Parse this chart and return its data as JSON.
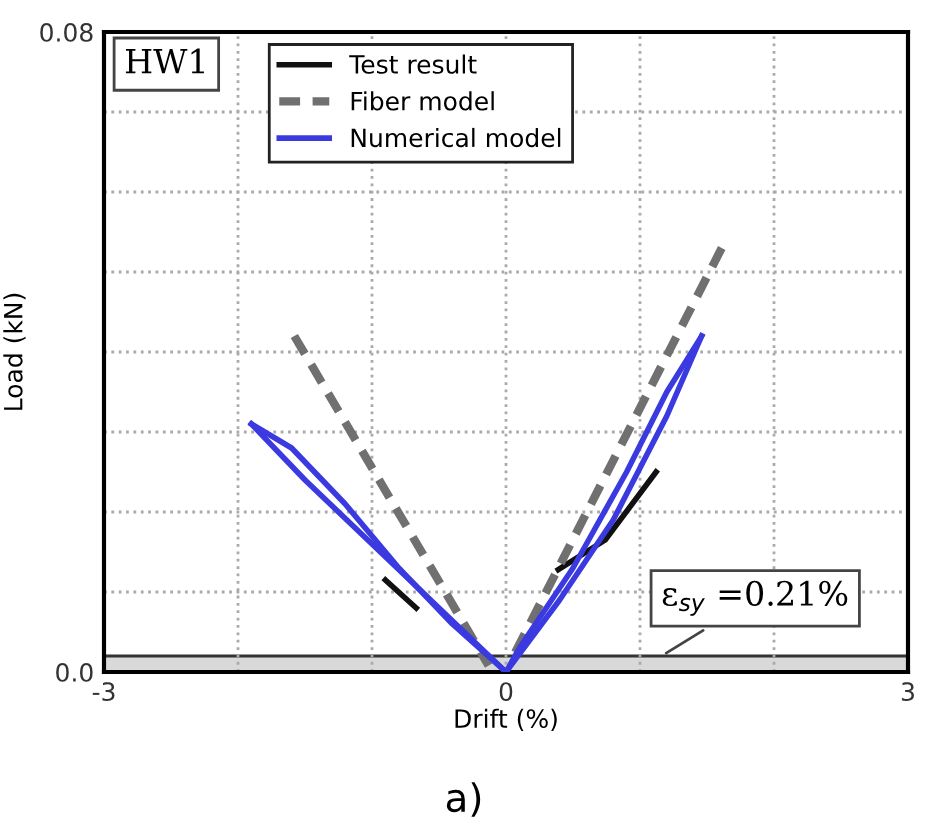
{
  "chart_data": {
    "type": "line",
    "xlabel": "Drift (%)",
    "ylabel": "Load (kN)",
    "xlim": [
      -3,
      3
    ],
    "ylim": [
      0,
      0.08
    ],
    "xticks": [
      -3,
      {
        "value": -2,
        "label": null
      },
      {
        "value": -1,
        "label": null
      },
      0,
      {
        "value": 1,
        "label": null
      },
      {
        "value": 2,
        "label": null
      },
      3
    ],
    "yticks": [
      {
        "value": 0,
        "label": "0.0"
      },
      {
        "value": 0.01,
        "label": null
      },
      {
        "value": 0.02,
        "label": null
      },
      {
        "value": 0.03,
        "label": null
      },
      {
        "value": 0.04,
        "label": null
      },
      {
        "value": 0.05,
        "label": null
      },
      {
        "value": 0.06,
        "label": null
      },
      {
        "value": 0.07,
        "label": null
      },
      0.08
    ],
    "grid": true,
    "legend": "top left",
    "series": [
      {
        "name": "Test result",
        "color": "#111111",
        "line_style": "solid",
        "x": [
          -0.9,
          -0.67,
          null,
          0.39,
          0.74,
          1.12
        ],
        "values": [
          0.0115,
          0.008,
          null,
          0.0128,
          0.0165,
          0.025
        ]
      },
      {
        "name": "Fiber model",
        "color": "#707070",
        "line_style": "dashed",
        "x": [
          -1.58,
          -0.13,
          null,
          1.61,
          0.04
        ],
        "values": [
          0.042,
          0.0008,
          null,
          0.053,
          0.0015
        ]
      },
      {
        "name": "Numerical model",
        "color": "#3a3ae0",
        "line_style": "solid",
        "x": [
          -1.9,
          -1.5,
          -1.0,
          -0.5,
          0
        ],
        "values": [
          0.031,
          0.024,
          0.016,
          0.008,
          0
        ]
      },
      {
        "color": "#3a3ae0",
        "line_style": "solid",
        "x": [
          -1.9,
          -1.6,
          -1.2,
          -0.8,
          -0.4,
          0
        ],
        "values": [
          0.031,
          0.028,
          0.021,
          0.013,
          0.006,
          0
        ]
      },
      {
        "color": "#3a3ae0",
        "line_style": "solid",
        "x": [
          0,
          0.4,
          0.8,
          1.2,
          1.46
        ],
        "values": [
          0,
          0.009,
          0.019,
          0.032,
          0.042
        ]
      },
      {
        "color": "#3a3ae0",
        "line_style": "solid",
        "x": [
          0,
          0.1,
          0.5,
          0.9,
          1.2,
          1.46
        ],
        "values": [
          0,
          0.003,
          0.013,
          0.025,
          0.035,
          0.042
        ]
      }
    ],
    "bands": [
      {
        "axis": "y",
        "from": 0,
        "to": 0.002,
        "color": "#d9d9d9"
      }
    ],
    "annotations": [
      "HW1",
      {
        "text": "ε$_{sy}$ =0.21%",
        "x": 1.16,
        "y": 0.002
      },
      "a)"
    ]
  }
}
